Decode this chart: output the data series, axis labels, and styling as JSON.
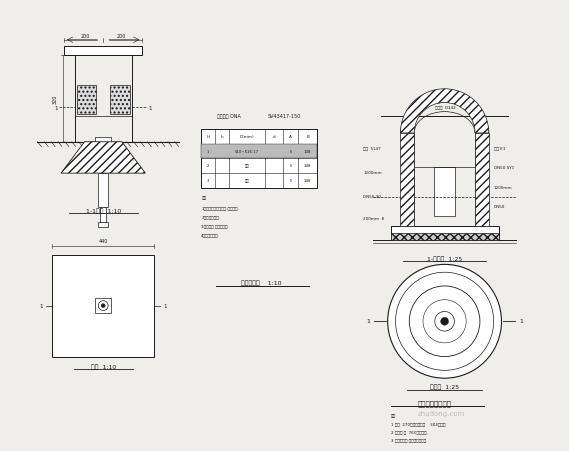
{
  "bg_color": "#f0eeea",
  "line_color": "#1a1a1a",
  "hatch_color": "#333333",
  "title_left_top": "1-1剥面  1:10",
  "title_left_bottom": "平面  1:10",
  "title_center": "阀井平面图    1:10",
  "title_right_top": "1-剥面图  1:25",
  "title_right_bottom": "平面图  1:25",
  "title_right_main": "排空管出水口详图",
  "watermark": "zhudong.com",
  "note_center_1": "1阀门开关形式，拉伸-弹簧密封.",
  "note_center_2": "2气动振动弹气.",
  "note_center_3": "3内径表面 密封拄巣层.",
  "note_center_4": "4外径圆密封层.",
  "note_right_0": "注：",
  "note_right_1": "1 内径  270内径圆装速层    304密封在",
  "note_right_2": "2 外径圆 而  760密封层底.",
  "note_right_3": "3 内径圆式山 式加层密封层底."
}
